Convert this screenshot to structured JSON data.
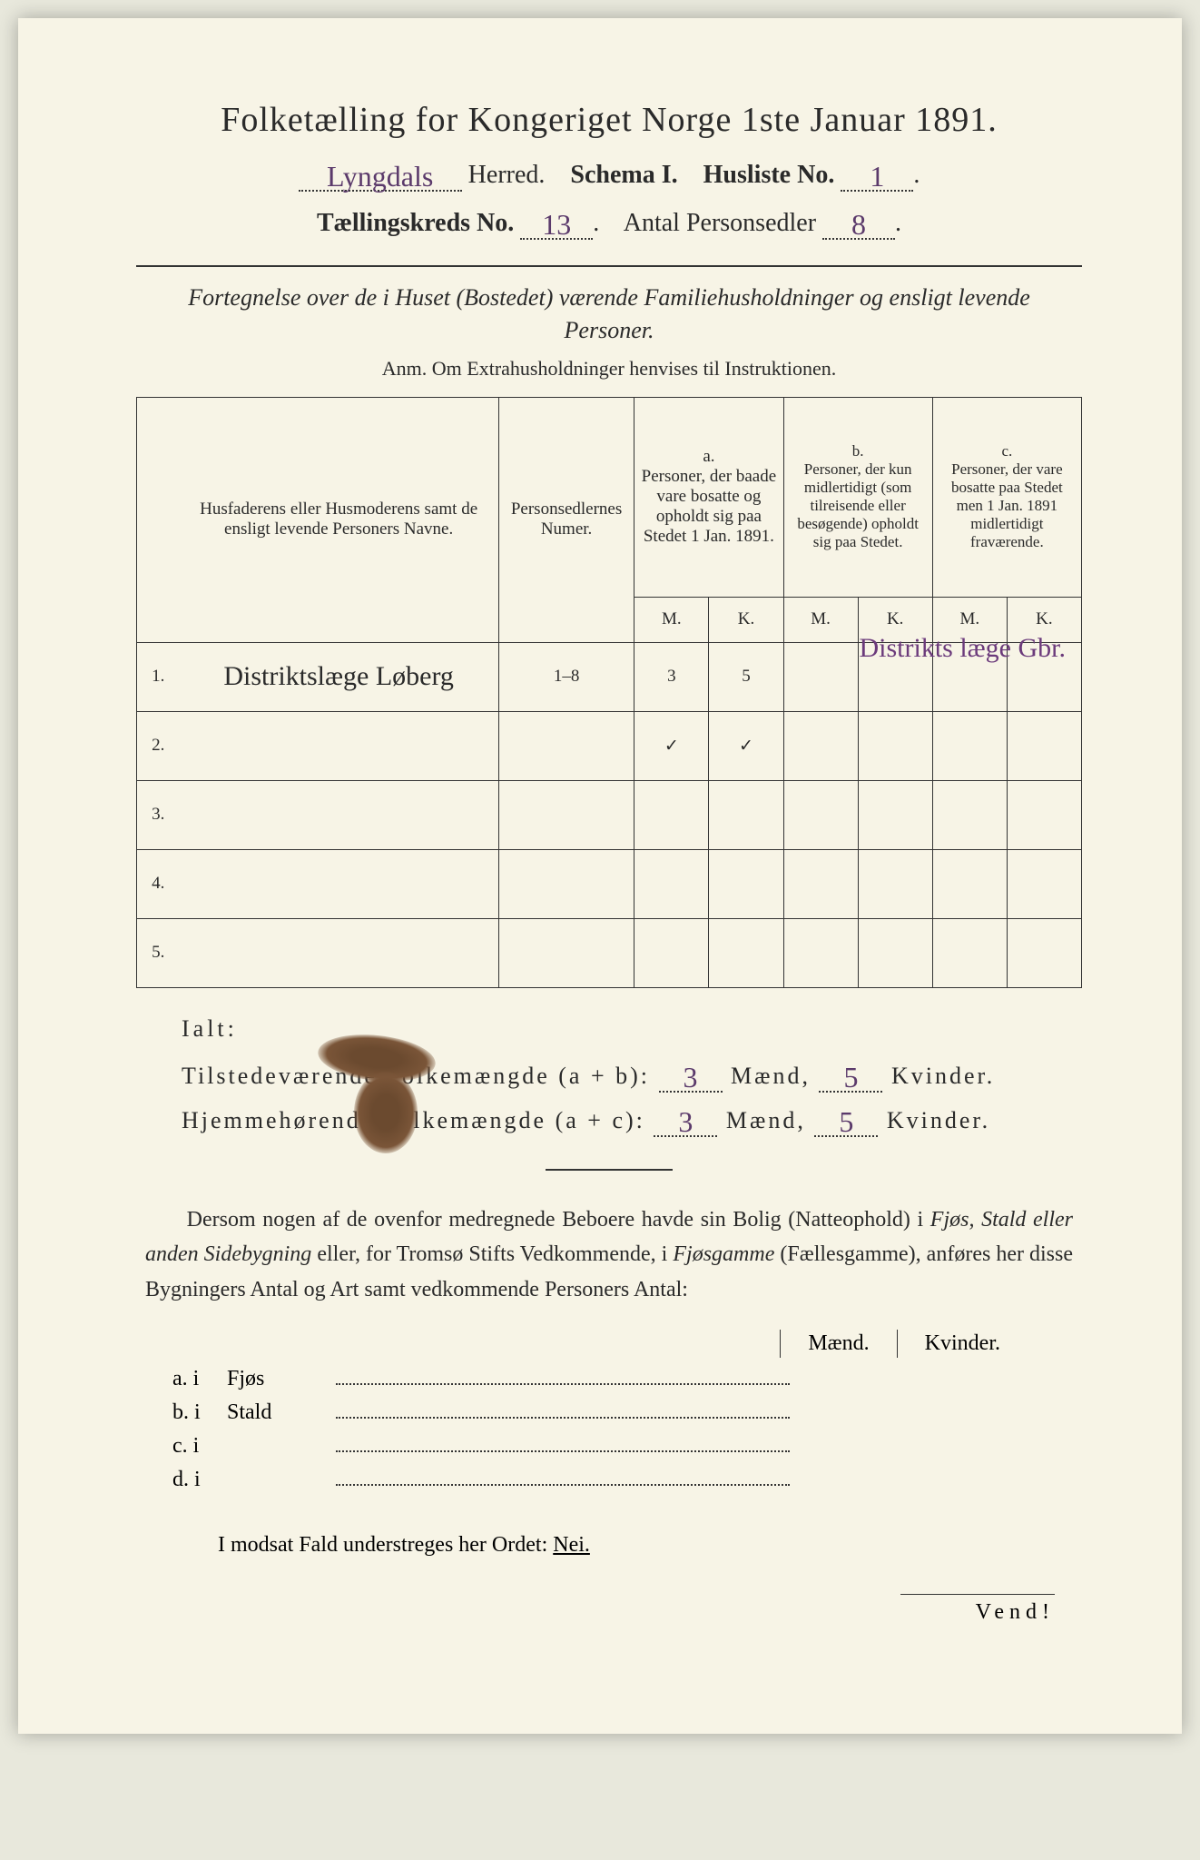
{
  "title": "Folketælling for Kongeriget Norge 1ste Januar 1891.",
  "header": {
    "herred_hand": "Lyngdals",
    "herred_label": "Herred.",
    "schema_label": "Schema I.",
    "husliste_label": "Husliste No.",
    "husliste_hand": "1",
    "kreds_label": "Tællingskreds No.",
    "kreds_hand": "13",
    "antal_label": "Antal Personsedler",
    "antal_hand": "8"
  },
  "desc_italic": "Fortegnelse over de i Huset (Bostedet) værende Familiehusholdninger og ensligt levende Personer.",
  "anm": "Anm. Om Extrahusholdninger henvises til Instruktionen.",
  "table": {
    "col_names": "Husfaderens eller Husmoderens samt de ensligt levende Personers Navne.",
    "col_pers": "Personsedlernes Numer.",
    "col_a": "a.\nPersoner, der baade vare bosatte og opholdt sig paa Stedet 1 Jan. 1891.",
    "col_b": "b.\nPersoner, der kun midlertidigt (som tilreisende eller besøgende) opholdt sig paa Stedet.",
    "col_c": "c.\nPersoner, der vare bosatte paa Stedet men 1 Jan. 1891 midlertidigt fraværende.",
    "mk_m": "M.",
    "mk_k": "K.",
    "rows": [
      {
        "n": "1.",
        "name": "Distriktslæge Løberg",
        "pers": "1–8",
        "a_m": "3",
        "a_k": "5",
        "b_m": "",
        "b_k": "",
        "c_m": "",
        "c_k": ""
      },
      {
        "n": "2.",
        "name": "",
        "pers": "",
        "a_m": "✓",
        "a_k": "✓",
        "b_m": "",
        "b_k": "",
        "c_m": "",
        "c_k": ""
      },
      {
        "n": "3.",
        "name": "",
        "pers": "",
        "a_m": "",
        "a_k": "",
        "b_m": "",
        "b_k": "",
        "c_m": "",
        "c_k": ""
      },
      {
        "n": "4.",
        "name": "",
        "pers": "",
        "a_m": "",
        "a_k": "",
        "b_m": "",
        "b_k": "",
        "c_m": "",
        "c_k": ""
      },
      {
        "n": "5.",
        "name": "",
        "pers": "",
        "a_m": "",
        "a_k": "",
        "b_m": "",
        "b_k": "",
        "c_m": "",
        "c_k": ""
      }
    ]
  },
  "margin_note": "Distrikts læge Gbr.",
  "ialt": {
    "label": "Ialt:",
    "row1_label": "Tilstedeværende Folkemængde (a + b):",
    "row1_m": "3",
    "row1_k": "5",
    "row2_label": "Hjemmehørende Folkemængde (a + c):",
    "row2_m": "3",
    "row2_k": "5",
    "maend": "Mænd,",
    "kvinder": "Kvinder."
  },
  "para": "Dersom nogen af de ovenfor medregnede Beboere havde sin Bolig (Natteophold) i Fjøs, Stald eller anden Sidebygning eller, for Tromsø Stifts Vedkommende, i Fjøsgamme (Fællesgamme), anføres her disse Bygningers Antal og Art samt vedkommende Personers Antal:",
  "mk_head": {
    "m": "Mænd.",
    "k": "Kvinder."
  },
  "abcd": [
    {
      "l": "a. i",
      "t": "Fjøs"
    },
    {
      "l": "b. i",
      "t": "Stald"
    },
    {
      "l": "c. i",
      "t": ""
    },
    {
      "l": "d. i",
      "t": ""
    }
  ],
  "nei": {
    "pre": "I modsat Fald understreges her Ordet: ",
    "word": "Nei."
  },
  "vend": "Vend!",
  "colors": {
    "paper": "#f7f4e6",
    "ink": "#2a2a2a",
    "hand_ink": "#5b3a6b",
    "stain": "#6b4a2f"
  }
}
